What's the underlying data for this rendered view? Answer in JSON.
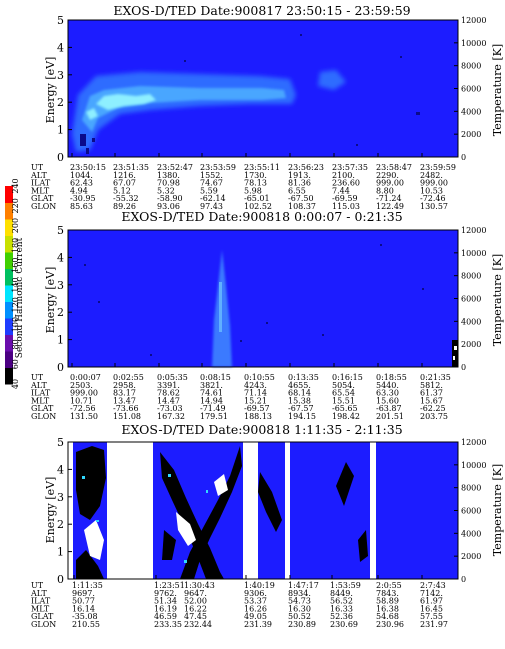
{
  "colorbar": {
    "label": "Second Harmonic Current",
    "ticks": [
      "40",
      "60",
      "80",
      "100",
      "120",
      "140",
      "160",
      "180",
      "200",
      "220",
      "240"
    ],
    "colors": [
      "#000000",
      "#4b0082",
      "#6a0dad",
      "#1e3cff",
      "#0090ff",
      "#00e5ff",
      "#00c060",
      "#40d000",
      "#c8e000",
      "#ffe000",
      "#ff8000",
      "#ff0000"
    ]
  },
  "chart_data": [
    {
      "type": "heatmap",
      "title": "EXOS-D/TED   Date:900817  23:50:15 - 23:59:59",
      "ylabel": "Energy [eV]",
      "y2label": "Temperature [K]",
      "ylim": [
        0,
        5
      ],
      "y2lim": [
        0,
        12000
      ],
      "yticks": [
        "0",
        "1",
        "2",
        "3",
        "4",
        "5"
      ],
      "y2ticks": [
        "0",
        "2000",
        "4000",
        "6000",
        "8000",
        "10000",
        "12000"
      ],
      "background": "#1c1cff",
      "table_labels": [
        "UT",
        "ALT",
        "ILAT",
        "MLT",
        "GLAT",
        "GLON"
      ],
      "columns": [
        [
          "23:50:15",
          "1044.",
          "62.43",
          "4.94",
          "-30.95",
          "85.63"
        ],
        [
          "23:51:35",
          "1216.",
          "67.07",
          "5.12",
          "-55.32",
          "89.26"
        ],
        [
          "23:52:47",
          "1380.",
          "70.98",
          "5.32",
          "-58.90",
          "93.06"
        ],
        [
          "23:53:59",
          "1552.",
          "74.67",
          "5.59",
          "-62.14",
          "97.43"
        ],
        [
          "23:55:11",
          "1730.",
          "78.13",
          "5.98",
          "-65.01",
          "102.52"
        ],
        [
          "23:56:23",
          "1913.",
          "81.36",
          "6.55",
          "-67.50",
          "108.37"
        ],
        [
          "23:57:35",
          "2100.",
          "236.60",
          "7.44",
          "-69.59",
          "115.03"
        ],
        [
          "23:58:47",
          "2290.",
          "999.00",
          "8.80",
          "-71.24",
          "122.49"
        ],
        [
          "23:59:59",
          "2482.",
          "999.00",
          "10.53",
          "-72.46",
          "130.57"
        ]
      ]
    },
    {
      "type": "heatmap",
      "title": "EXOS-D/TED   Date:900818  0:00:07 - 0:21:35",
      "ylabel": "Energy [eV]",
      "y2label": "Temperature [K]",
      "ylim": [
        0,
        5
      ],
      "y2lim": [
        0,
        12000
      ],
      "yticks": [
        "0",
        "1",
        "2",
        "3",
        "4",
        "5"
      ],
      "y2ticks": [
        "0",
        "2000",
        "4000",
        "6000",
        "8000",
        "10000",
        "12000"
      ],
      "background": "#1c1cff",
      "table_labels": [
        "UT",
        "ALT",
        "ILAT",
        "MLT",
        "GLAT",
        "GLON"
      ],
      "columns": [
        [
          "0:00:07",
          "2503.",
          "999.00",
          "10.71",
          "-72.56",
          "131.50"
        ],
        [
          "0:02:55",
          "2958.",
          "83.17",
          "13.47",
          "-73.66",
          "151.08"
        ],
        [
          "0:05:35",
          "3391.",
          "78.62",
          "14.47",
          "-73.03",
          "167.32"
        ],
        [
          "0:08:15",
          "3821.",
          "74.61",
          "14.94",
          "-71.49",
          "179.51"
        ],
        [
          "0:10:55",
          "4243.",
          "71.14",
          "15.21",
          "-69.57",
          "188.13"
        ],
        [
          "0:13:35",
          "4655.",
          "68.14",
          "15.38",
          "-67.57",
          "194.15"
        ],
        [
          "0:16:15",
          "5054.",
          "65.54",
          "15.51",
          "-65.65",
          "198.42"
        ],
        [
          "0:18:55",
          "5440.",
          "63.30",
          "15.60",
          "-63.87",
          "201.51"
        ],
        [
          "0:21:35",
          "5812.",
          "61.37",
          "15.67",
          "-62.25",
          "203.75"
        ]
      ]
    },
    {
      "type": "heatmap",
      "title": "EXOS-D/TED   Date:900818  1:11:35 - 2:11:35",
      "ylabel": "Energy [eV]",
      "y2label": "Temperature [K]",
      "ylim": [
        0,
        5
      ],
      "y2lim": [
        0,
        12000
      ],
      "yticks": [
        "0",
        "1",
        "2",
        "3",
        "4",
        "5"
      ],
      "y2ticks": [
        "0",
        "2000",
        "4000",
        "6000",
        "8000",
        "10000",
        "12000"
      ],
      "background": "#1c1cff",
      "table_labels": [
        "UT",
        "ALT",
        "ILAT",
        "MLT",
        "GLAT",
        "GLON"
      ],
      "columns": [
        [
          "1:11:35",
          "9697.",
          "50.77",
          "16.14",
          "-35.08",
          "210.55"
        ],
        [
          "1:23:51",
          "9762.",
          "51.34",
          "16.19",
          "46.59",
          "233.35"
        ],
        [
          "1:30:43",
          "9647.",
          "52.00",
          "16.22",
          "47.45",
          "232.44"
        ],
        [
          "1:40:19",
          "9306.",
          "53.37",
          "16.26",
          "49.05",
          "231.39"
        ],
        [
          "1:47:17",
          "8934.",
          "54.73",
          "16.30",
          "50.52",
          "230.89"
        ],
        [
          "1:53:59",
          "8449.",
          "56.52",
          "16.33",
          "52.36",
          "230.69"
        ],
        [
          "2:0:55",
          "7843.",
          "58.89",
          "16.38",
          "54.68",
          "230.96"
        ],
        [
          "2:7:43",
          "7142.",
          "61.97",
          "16.45",
          "57.55",
          "231.97"
        ]
      ]
    }
  ]
}
